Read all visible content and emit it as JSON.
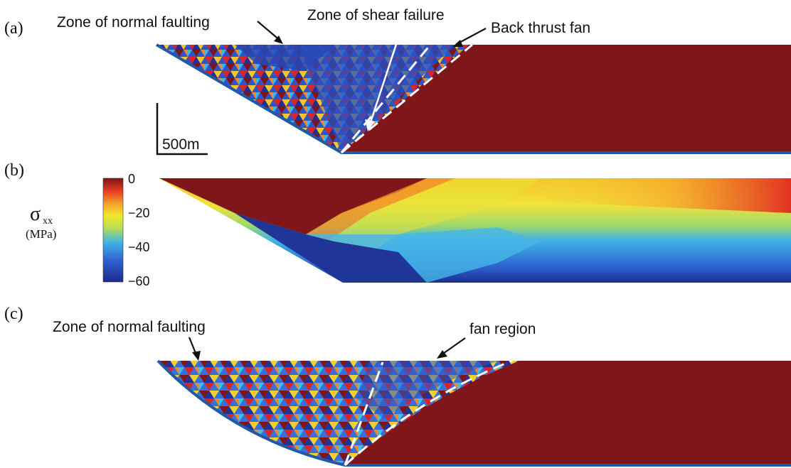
{
  "panels": {
    "a": {
      "label": "(a)",
      "annotations": {
        "normal_faulting": "Zone of normal faulting",
        "shear_failure": "Zone of shear failure",
        "back_thrust": "Back thrust fan"
      },
      "scale_bar": "500m"
    },
    "b": {
      "label": "(b)",
      "colorbar": {
        "symbol": "σ",
        "subscript": "xx",
        "unit": "(MPa)",
        "ticks": [
          "0",
          "−20",
          "−40",
          "−60"
        ],
        "range": [
          -60,
          0
        ],
        "colors": [
          "#1c2a8c",
          "#2f5fd0",
          "#3fb2e6",
          "#b6df57",
          "#f3e62a",
          "#f6a32a",
          "#e63a24",
          "#7e1518"
        ]
      }
    },
    "c": {
      "label": "(c)",
      "annotations": {
        "normal_faulting": "Zone of normal faulting",
        "fan_region": "fan region"
      }
    }
  }
}
